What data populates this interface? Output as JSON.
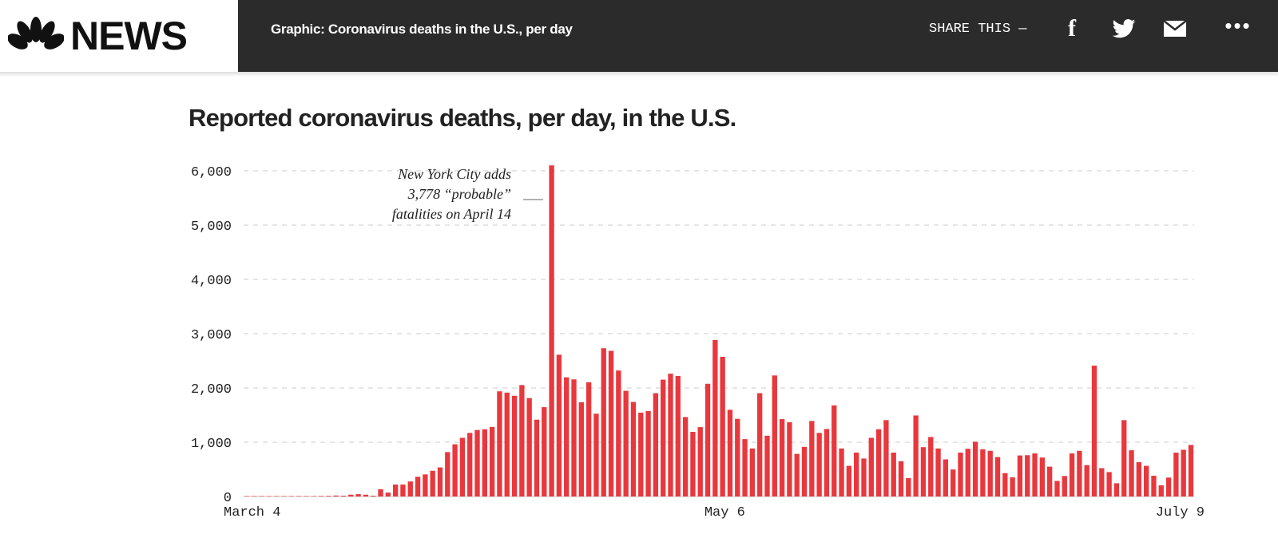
{
  "header": {
    "brand": "NEWS",
    "title": "Graphic: Coronavirus deaths in the U.S., per day",
    "share_label": "SHARE THIS —",
    "icons": [
      "facebook-icon",
      "twitter-icon",
      "mail-icon",
      "more-icon"
    ]
  },
  "chart_data": {
    "type": "bar",
    "title": "Reported coronavirus deaths, per day, in the U.S.",
    "xlabel": "",
    "ylabel": "",
    "ylim": [
      0,
      6000
    ],
    "yticks": [
      0,
      1000,
      2000,
      3000,
      4000,
      5000,
      6000
    ],
    "ytick_labels": [
      "0",
      "1,000",
      "2,000",
      "3,000",
      "4,000",
      "5,000",
      "6,000"
    ],
    "xtick_labels": [
      {
        "label": "March 4",
        "index": 0
      },
      {
        "label": "May 6",
        "index": 63
      },
      {
        "label": "July 9",
        "index": 127
      }
    ],
    "grid": true,
    "color": "#e8383d",
    "annotation": {
      "lines": [
        "New York City adds",
        "3,778 “probable”",
        "fatalities on April 14"
      ],
      "index": 41
    },
    "values": [
      0,
      1,
      1,
      2,
      2,
      3,
      4,
      5,
      7,
      8,
      10,
      12,
      18,
      15,
      33,
      43,
      33,
      15,
      134,
      72,
      220,
      220,
      277,
      364,
      407,
      474,
      536,
      818,
      962,
      1081,
      1172,
      1225,
      1239,
      1282,
      1938,
      1914,
      1856,
      2053,
      1813,
      1416,
      1646,
      6100,
      2612,
      2196,
      2158,
      1737,
      2105,
      1526,
      2732,
      2684,
      2321,
      1947,
      1742,
      1545,
      1574,
      1904,
      2153,
      2263,
      2220,
      1464,
      1191,
      1278,
      2077,
      2885,
      2574,
      1598,
      1431,
      1057,
      885,
      1904,
      1120,
      2230,
      1426,
      1368,
      785,
      914,
      1392,
      1172,
      1244,
      1679,
      885,
      565,
      809,
      700,
      1081,
      1239,
      1407,
      809,
      651,
      340,
      1493,
      909,
      1096,
      885,
      684,
      498,
      809,
      880,
      1010,
      871,
      842,
      727,
      431,
      354,
      756,
      761,
      794,
      718,
      550,
      287,
      378,
      794,
      842,
      579,
      2411,
      522,
      450,
      244,
      1407,
      852,
      632,
      565,
      383,
      206,
      349,
      809,
      861,
      950
    ]
  }
}
